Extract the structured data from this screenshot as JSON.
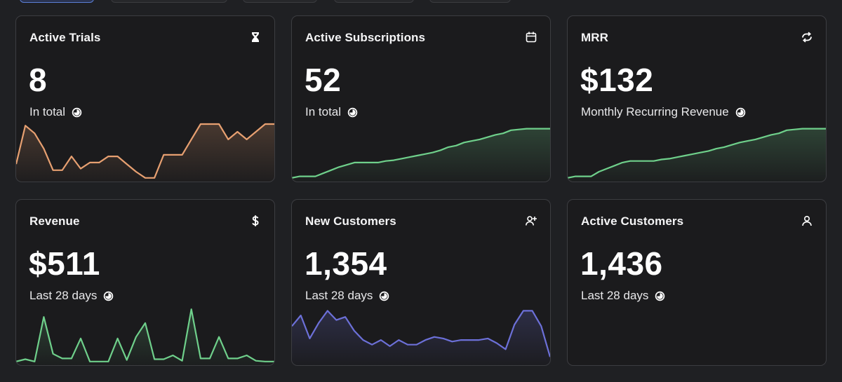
{
  "cards": [
    {
      "title": "Active Trials",
      "icon": "hourglass-icon",
      "value": "8",
      "subtitle": "In total",
      "color": "#e7a071",
      "sparkline": [
        20,
        70,
        60,
        40,
        12,
        12,
        30,
        14,
        22,
        22,
        30,
        30,
        20,
        10,
        2,
        2,
        32,
        32,
        32,
        52,
        72,
        72,
        72,
        52,
        62,
        52,
        62,
        72,
        72
      ]
    },
    {
      "title": "Active Subscriptions",
      "icon": "calendar-icon",
      "value": "52",
      "subtitle": "In total",
      "color": "#6fd08b",
      "sparkline": [
        2,
        4,
        4,
        4,
        8,
        12,
        16,
        19,
        22,
        22,
        22,
        22,
        24,
        25,
        27,
        29,
        31,
        33,
        35,
        38,
        42,
        44,
        48,
        50,
        52,
        55,
        58,
        60,
        64,
        65,
        66,
        66,
        66,
        66
      ]
    },
    {
      "title": "MRR",
      "icon": "refresh-icon",
      "value": "$132",
      "subtitle": "Monthly Recurring Revenue",
      "color": "#6fd08b",
      "sparkline": [
        2,
        4,
        4,
        4,
        10,
        14,
        18,
        22,
        24,
        24,
        24,
        24,
        26,
        27,
        29,
        31,
        33,
        35,
        37,
        40,
        42,
        45,
        48,
        50,
        52,
        55,
        58,
        60,
        64,
        65,
        66,
        66,
        66,
        66
      ]
    },
    {
      "title": "Revenue",
      "icon": "dollar-icon",
      "value": "$511",
      "subtitle": "Last 28 days",
      "color": "#6fd08b",
      "sparkline": [
        2,
        5,
        2,
        60,
        12,
        6,
        6,
        32,
        2,
        2,
        2,
        32,
        4,
        34,
        52,
        5,
        5,
        10,
        3,
        70,
        6,
        6,
        34,
        6,
        6,
        10,
        3,
        2,
        2
      ]
    },
    {
      "title": "New Customers",
      "icon": "user-plus-icon",
      "value": "1,354",
      "subtitle": "Last 28 days",
      "color": "#6c70d8",
      "sparkline": [
        48,
        62,
        32,
        52,
        68,
        56,
        60,
        42,
        30,
        24,
        30,
        22,
        30,
        24,
        24,
        30,
        34,
        32,
        28,
        30,
        30,
        30,
        32,
        26,
        18,
        50,
        68,
        68,
        48,
        8
      ]
    },
    {
      "title": "Active Customers",
      "icon": "user-icon",
      "value": "1,436",
      "subtitle": "Last 28 days",
      "color": "#6fd08b",
      "sparkline": []
    }
  ]
}
